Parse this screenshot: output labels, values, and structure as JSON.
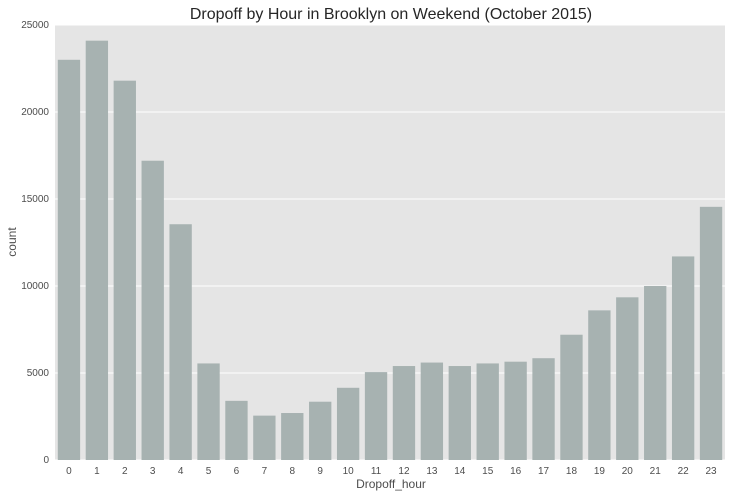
{
  "chart_data": {
    "type": "bar",
    "title": "Dropoff by Hour in Brooklyn on Weekend (October 2015)",
    "xlabel": "Dropoff_hour",
    "ylabel": "count",
    "categories": [
      "0",
      "1",
      "2",
      "3",
      "4",
      "5",
      "6",
      "7",
      "8",
      "9",
      "10",
      "11",
      "12",
      "13",
      "14",
      "15",
      "16",
      "17",
      "18",
      "19",
      "20",
      "21",
      "22",
      "23"
    ],
    "values": [
      23000,
      24100,
      21800,
      17200,
      13550,
      5550,
      3400,
      2550,
      2700,
      3350,
      4150,
      5050,
      5400,
      5600,
      5400,
      5550,
      5650,
      5850,
      7200,
      8600,
      9350,
      10000,
      11700,
      14550
    ],
    "ylim": [
      0,
      25000
    ],
    "yticks": [
      0,
      5000,
      10000,
      15000,
      20000,
      25000
    ],
    "grid": true,
    "bar_color": "#a7b2b1",
    "plot_background": "#e5e5e5",
    "grid_color": "#ffffff"
  }
}
